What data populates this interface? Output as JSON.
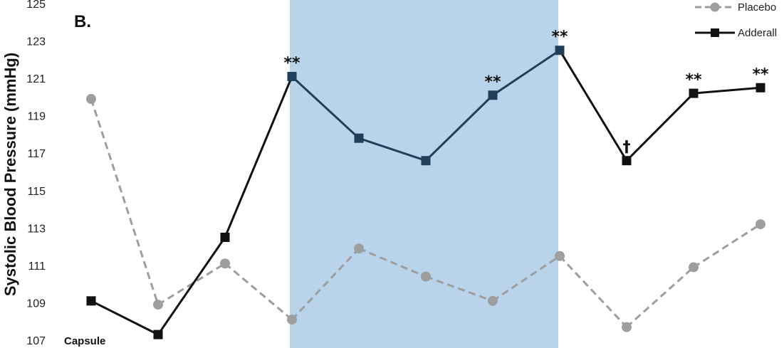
{
  "chart_data": {
    "type": "line",
    "panel_label": "B.",
    "ylabel": "Systolic Blood Pressure (mmHg)",
    "ylim": [
      107,
      125
    ],
    "yticks": [
      107,
      109,
      111,
      113,
      115,
      117,
      119,
      121,
      123,
      125
    ],
    "x": [
      1,
      2,
      3,
      4,
      5,
      6,
      7,
      8,
      9,
      10,
      11
    ],
    "x_note": "Capsule",
    "shaded_region": {
      "x_start": 4,
      "x_end": 8,
      "color": "#b8d3ea"
    },
    "legend_position": "top-right",
    "series": [
      {
        "name": "Placebo",
        "style": "dashed",
        "marker": "circle",
        "color": "#9e9e9e",
        "values": [
          119.9,
          108.9,
          111.1,
          108.1,
          111.9,
          110.4,
          109.1,
          111.5,
          107.7,
          110.9,
          113.2
        ]
      },
      {
        "name": "Adderall",
        "style": "solid",
        "marker": "square",
        "color": "#111111",
        "shaded_color": "#1f3f5a",
        "values": [
          109.1,
          107.3,
          112.5,
          121.1,
          117.8,
          116.6,
          120.1,
          122.5,
          116.6,
          120.2,
          120.5
        ]
      }
    ],
    "annotations": [
      {
        "x": 4,
        "text": "**"
      },
      {
        "x": 7,
        "text": "**"
      },
      {
        "x": 8,
        "text": "**"
      },
      {
        "x": 9,
        "text": "†"
      },
      {
        "x": 10,
        "text": "**"
      },
      {
        "x": 11,
        "text": "**"
      }
    ]
  }
}
